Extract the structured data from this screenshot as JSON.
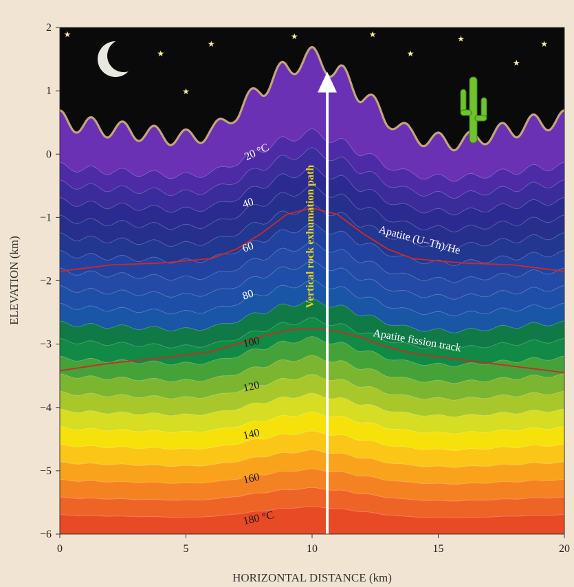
{
  "chart_data": {
    "type": "area",
    "xlabel": "HORIZONTAL DISTANCE (km)",
    "ylabel": "ELEVATION (km)",
    "xlim": [
      0,
      20
    ],
    "ylim": [
      -6,
      2
    ],
    "x_ticks": [
      "0",
      "5",
      "10",
      "15",
      "20"
    ],
    "y_ticks": [
      "2",
      "1",
      "0",
      "−1",
      "−2",
      "−3",
      "−4",
      "−5",
      "−6"
    ],
    "surface_profile": {
      "x": [
        0,
        1,
        2,
        3,
        4,
        5,
        6,
        7,
        8,
        9,
        10,
        11,
        12,
        13,
        14,
        15,
        16,
        17,
        18,
        19,
        20
      ],
      "y": [
        0.55,
        0.45,
        0.4,
        0.35,
        0.3,
        0.25,
        0.35,
        0.65,
        1.05,
        1.35,
        1.55,
        1.3,
        0.95,
        0.55,
        0.3,
        0.2,
        0.2,
        0.3,
        0.4,
        0.5,
        0.55
      ]
    },
    "isotherm_labels": [
      {
        "text": "20 °C",
        "x": 7.4,
        "y": -0.1
      },
      {
        "text": "40",
        "x": 7.3,
        "y": -0.85
      },
      {
        "text": "60",
        "x": 7.3,
        "y": -1.55
      },
      {
        "text": "80",
        "x": 7.3,
        "y": -2.3
      },
      {
        "text": "100",
        "x": 7.3,
        "y": -3.05
      },
      {
        "text": "120",
        "x": 7.3,
        "y": -3.75
      },
      {
        "text": "140",
        "x": 7.3,
        "y": -4.5
      },
      {
        "text": "160",
        "x": 7.3,
        "y": -5.2
      },
      {
        "text": "180 °C",
        "x": 7.3,
        "y": -5.85
      }
    ],
    "closure_isotherms": [
      {
        "name": "Apatite (U–Th)/He",
        "x": [
          0,
          2,
          4,
          6,
          7,
          8,
          9,
          10,
          11,
          12,
          13,
          14,
          16,
          18,
          20
        ],
        "y": [
          -1.85,
          -1.75,
          -1.72,
          -1.65,
          -1.5,
          -1.25,
          -0.95,
          -0.85,
          -0.95,
          -1.25,
          -1.5,
          -1.65,
          -1.72,
          -1.75,
          -1.85
        ]
      },
      {
        "name": "Apatite fission track",
        "x": [
          0,
          2,
          4,
          6,
          7,
          8,
          9,
          10,
          11,
          12,
          13,
          14,
          16,
          18,
          20
        ],
        "y": [
          -3.42,
          -3.3,
          -3.22,
          -3.12,
          -3.0,
          -2.88,
          -2.78,
          -2.75,
          -2.8,
          -2.9,
          -3.05,
          -3.15,
          -3.25,
          -3.35,
          -3.45
        ]
      }
    ],
    "arrow": {
      "label": "Vertical rock exhumation path",
      "x": 10.6,
      "y_start": -6,
      "y_end": 1.3
    },
    "colors": {
      "sky": "#0a0a0a",
      "surface_line": "#c2a67a",
      "closure_line": "#d02828",
      "arrow_label": "#e6d21c",
      "bands": [
        "#6a31b4",
        "#4d2aa6",
        "#3a2c9a",
        "#2b2a90",
        "#262f8c",
        "#22378f",
        "#2142a0",
        "#234aa6",
        "#1e4fa8",
        "#1a56a6",
        "#0f7a46",
        "#108a44",
        "#45a238",
        "#7cb52f",
        "#a8c72b",
        "#d6dd22",
        "#f6e20a",
        "#fbc617",
        "#f8a31b",
        "#f58222",
        "#ee6426",
        "#e84a26"
      ]
    }
  }
}
